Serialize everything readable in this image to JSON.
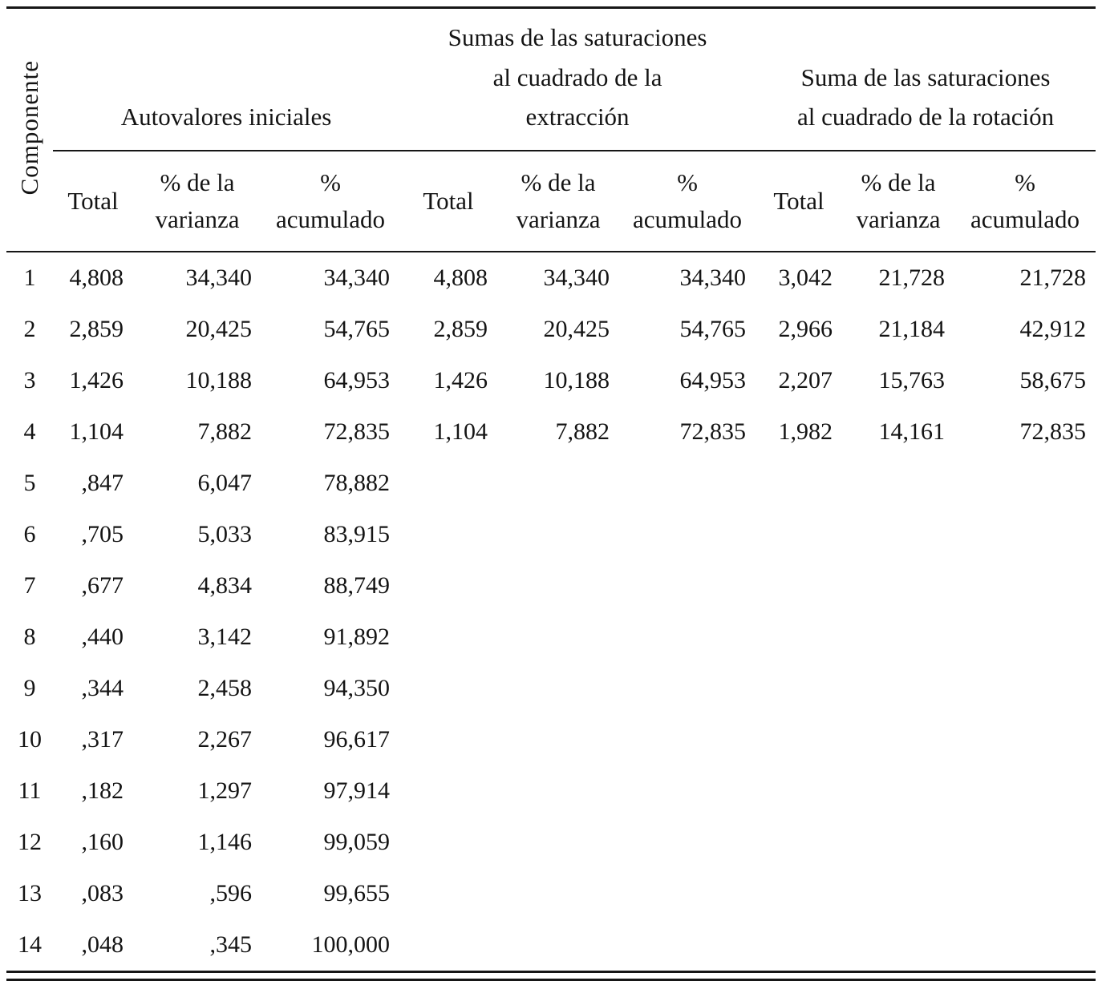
{
  "table": {
    "corner_header": "Componente",
    "groups": [
      {
        "label": "Autovalores iniciales"
      },
      {
        "label": "Sumas de las saturaciones\nal cuadrado de la\nextracción"
      },
      {
        "label": "Suma de las saturaciones\nal cuadrado de la rotación"
      }
    ],
    "subheaders": {
      "total": "Total",
      "pct_varianza": "% de la\nvarianza",
      "pct_acumulado": "%\nacumulado"
    },
    "rows": [
      [
        "1",
        "4,808",
        "34,340",
        "34,340",
        "4,808",
        "34,340",
        "34,340",
        "3,042",
        "21,728",
        "21,728"
      ],
      [
        "2",
        "2,859",
        "20,425",
        "54,765",
        "2,859",
        "20,425",
        "54,765",
        "2,966",
        "21,184",
        "42,912"
      ],
      [
        "3",
        "1,426",
        "10,188",
        "64,953",
        "1,426",
        "10,188",
        "64,953",
        "2,207",
        "15,763",
        "58,675"
      ],
      [
        "4",
        "1,104",
        "7,882",
        "72,835",
        "1,104",
        "7,882",
        "72,835",
        "1,982",
        "14,161",
        "72,835"
      ],
      [
        "5",
        ",847",
        "6,047",
        "78,882",
        "",
        "",
        "",
        "",
        "",
        ""
      ],
      [
        "6",
        ",705",
        "5,033",
        "83,915",
        "",
        "",
        "",
        "",
        "",
        ""
      ],
      [
        "7",
        ",677",
        "4,834",
        "88,749",
        "",
        "",
        "",
        "",
        "",
        ""
      ],
      [
        "8",
        ",440",
        "3,142",
        "91,892",
        "",
        "",
        "",
        "",
        "",
        ""
      ],
      [
        "9",
        ",344",
        "2,458",
        "94,350",
        "",
        "",
        "",
        "",
        "",
        ""
      ],
      [
        "10",
        ",317",
        "2,267",
        "96,617",
        "",
        "",
        "",
        "",
        "",
        ""
      ],
      [
        "11",
        ",182",
        "1,297",
        "97,914",
        "",
        "",
        "",
        "",
        "",
        ""
      ],
      [
        "12",
        ",160",
        "1,146",
        "99,059",
        "",
        "",
        "",
        "",
        "",
        ""
      ],
      [
        "13",
        ",083",
        ",596",
        "99,655",
        "",
        "",
        "",
        "",
        "",
        ""
      ],
      [
        "14",
        ",048",
        ",345",
        "100,000",
        "",
        "",
        "",
        "",
        "",
        ""
      ]
    ]
  }
}
